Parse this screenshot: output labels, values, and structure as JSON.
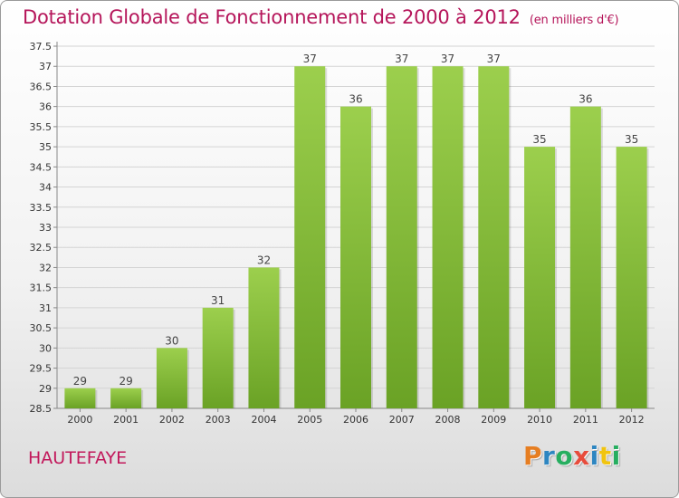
{
  "header": {
    "title": "Dotation Globale de Fonctionnement de 2000 à 2012",
    "subtitle": "(en milliers d'€)"
  },
  "footer": {
    "commune": "HAUTEFAYE",
    "logo": "Proxiti",
    "logo_colors": [
      "#e67e22",
      "#2e86c1",
      "#27ae60",
      "#e74c3c",
      "#2e86c1",
      "#f1c40f",
      "#27ae60"
    ]
  },
  "chart_data": {
    "type": "bar",
    "categories": [
      "2000",
      "2001",
      "2002",
      "2003",
      "2004",
      "2005",
      "2006",
      "2007",
      "2008",
      "2009",
      "2010",
      "2011",
      "2012"
    ],
    "values": [
      29,
      29,
      30,
      31,
      32,
      37,
      36,
      37,
      37,
      37,
      35,
      36,
      35
    ],
    "data_labels": [
      "29",
      "29",
      "30",
      "31",
      "32",
      "37",
      "36",
      "37",
      "37",
      "37",
      "35",
      "36",
      "35"
    ],
    "ylim": [
      28.5,
      37.5
    ],
    "yticks": [
      "28.5",
      "29",
      "29.5",
      "30",
      "30.5",
      "31",
      "31.5",
      "32",
      "32.5",
      "33",
      "33.5",
      "34",
      "34.5",
      "35",
      "35.5",
      "36",
      "36.5",
      "37",
      "37.5"
    ],
    "grid": true,
    "bar_color_top": "#9ccf4d",
    "bar_color_bottom": "#6aa225"
  }
}
